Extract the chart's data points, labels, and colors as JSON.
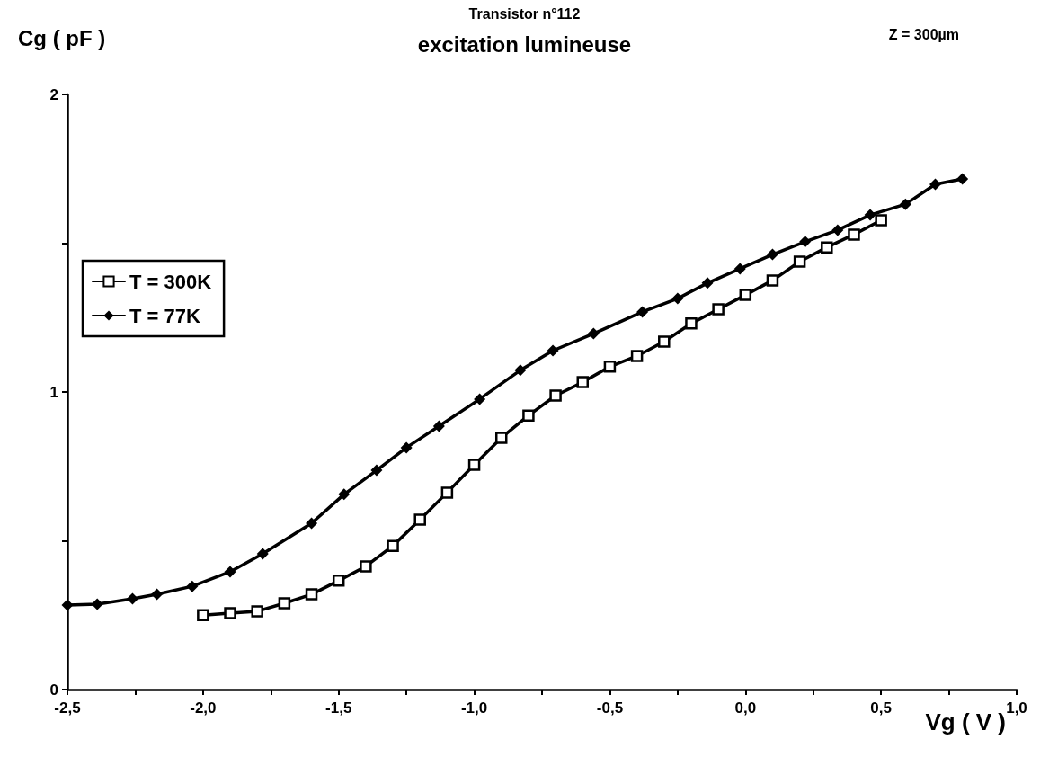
{
  "chart_data": {
    "type": "line",
    "title": "Transistor n°112",
    "subtitle": "excitation lumineuse",
    "xlabel": "Vg ( V )",
    "ylabel": "Cg ( pF )",
    "annotations": [
      "Z = 300µm"
    ],
    "xlim": [
      -2.5,
      1.0
    ],
    "xticks": [
      {
        "value": -2.5,
        "label": "-2,5"
      },
      {
        "value": -2.25,
        "label": null
      },
      {
        "value": -2.0,
        "label": "-2,0"
      },
      {
        "value": -1.75,
        "label": null
      },
      {
        "value": -1.5,
        "label": "-1,5"
      },
      {
        "value": -1.25,
        "label": null
      },
      {
        "value": -1.0,
        "label": "-1,0"
      },
      {
        "value": -0.75,
        "label": null
      },
      {
        "value": -0.5,
        "label": "-0,5"
      },
      {
        "value": -0.25,
        "label": null
      },
      {
        "value": 0.0,
        "label": "0,0"
      },
      {
        "value": 0.25,
        "label": null
      },
      {
        "value": 0.5,
        "label": "0,5"
      },
      {
        "value": 0.75,
        "label": null
      },
      {
        "value": 1.0,
        "label": "1,0"
      }
    ],
    "ylim": [
      0,
      2
    ],
    "yticks": [
      0,
      {
        "value": 0.5,
        "label": null
      },
      1,
      {
        "value": 1.5,
        "label": null
      },
      2
    ],
    "grid": false,
    "legend": "left",
    "line_style": "solid",
    "series": [
      {
        "name": "T = 300K",
        "color": "#000000",
        "marker": "square",
        "x": [
          -2.0,
          -1.9,
          -1.8,
          -1.7,
          -1.6,
          -1.5,
          -1.4,
          -1.3,
          -1.2,
          -1.1,
          -1.0,
          -0.9,
          -0.8,
          -0.7,
          -0.6,
          -0.5,
          -0.4,
          -0.3,
          -0.2,
          -0.1,
          0.0,
          0.1,
          0.2,
          0.3,
          0.4,
          0.5
        ],
        "values": [
          0.25,
          0.257,
          0.263,
          0.29,
          0.32,
          0.366,
          0.414,
          0.483,
          0.571,
          0.662,
          0.755,
          0.846,
          0.921,
          0.988,
          1.033,
          1.085,
          1.121,
          1.169,
          1.23,
          1.278,
          1.326,
          1.375,
          1.438,
          1.486,
          1.529,
          1.577
        ]
      },
      {
        "name": "T = 77K",
        "color": "#000000",
        "marker": "diamond",
        "x": [
          -2.5,
          -2.39,
          -2.26,
          -2.17,
          -2.04,
          -1.9,
          -1.78,
          -1.6,
          -1.48,
          -1.36,
          -1.25,
          -1.13,
          -0.98,
          -0.83,
          -0.71,
          -0.56,
          -0.38,
          -0.25,
          -0.14,
          -0.02,
          0.1,
          0.22,
          0.34,
          0.46,
          0.59,
          0.7,
          0.8
        ],
        "values": [
          0.284,
          0.287,
          0.305,
          0.32,
          0.347,
          0.396,
          0.456,
          0.559,
          0.656,
          0.737,
          0.813,
          0.885,
          0.976,
          1.073,
          1.139,
          1.196,
          1.269,
          1.314,
          1.366,
          1.414,
          1.462,
          1.505,
          1.544,
          1.595,
          1.631,
          1.698,
          1.716
        ]
      }
    ]
  }
}
